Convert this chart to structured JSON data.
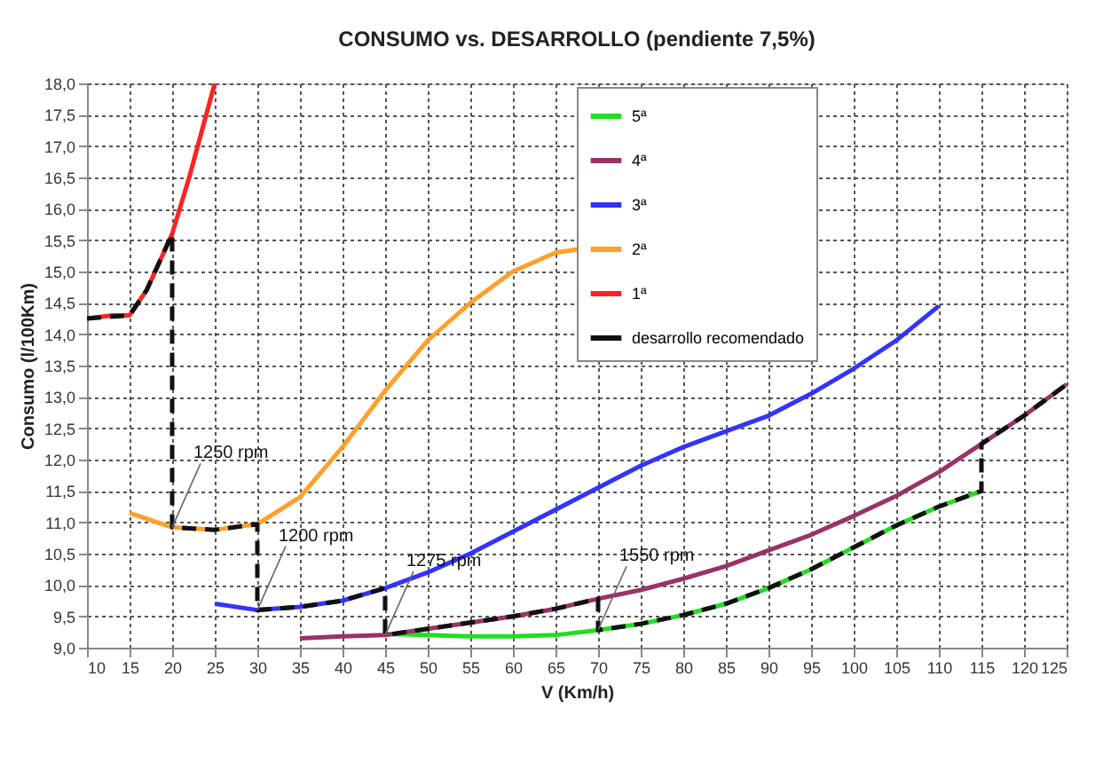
{
  "chart_data": {
    "type": "line",
    "title": "CONSUMO vs. DESARROLLO (pendiente 7,5%)",
    "xlabel": "V (Km/h)",
    "ylabel": "Consumo (l/100Km)",
    "xlim": [
      10,
      125
    ],
    "xticks": [
      10,
      15,
      20,
      25,
      30,
      35,
      40,
      45,
      50,
      55,
      60,
      65,
      70,
      75,
      80,
      85,
      90,
      95,
      100,
      105,
      110,
      115,
      120,
      125
    ],
    "ylim": [
      9.0,
      18.0
    ],
    "yticks": [
      {
        "value": 9.0,
        "label": "9,0"
      },
      {
        "value": 9.5,
        "label": "9,5"
      },
      {
        "value": 10.0,
        "label": "10,0"
      },
      {
        "value": 10.5,
        "label": "10,5"
      },
      {
        "value": 11.0,
        "label": "11,0"
      },
      {
        "value": 11.5,
        "label": "11,5"
      },
      {
        "value": 12.0,
        "label": "12,0"
      },
      {
        "value": 12.5,
        "label": "12,5"
      },
      {
        "value": 13.0,
        "label": "13,0"
      },
      {
        "value": 13.5,
        "label": "13,5"
      },
      {
        "value": 14.0,
        "label": "14,0"
      },
      {
        "value": 14.5,
        "label": "14,5"
      },
      {
        "value": 15.0,
        "label": "15,0"
      },
      {
        "value": 15.5,
        "label": "15,5"
      },
      {
        "value": 16.0,
        "label": "16,0"
      },
      {
        "value": 16.5,
        "label": "16,5"
      },
      {
        "value": 17.0,
        "label": "17,0"
      },
      {
        "value": 17.5,
        "label": "17,5"
      },
      {
        "value": 18.0,
        "label": "18,0"
      }
    ],
    "grid": true,
    "legend": "top",
    "marker": "none",
    "series": [
      {
        "name": "5ª",
        "color": "#22dd22",
        "x": [
          45,
          50,
          55,
          60,
          65,
          70,
          75,
          80,
          85,
          90,
          95,
          100,
          105,
          110,
          115
        ],
        "values": [
          9.22,
          9.2,
          9.18,
          9.18,
          9.2,
          9.28,
          9.38,
          9.52,
          9.7,
          9.95,
          10.25,
          10.6,
          10.95,
          11.25,
          11.5
        ]
      },
      {
        "name": "4ª",
        "color": "#993366",
        "x": [
          35,
          40,
          45,
          50,
          55,
          60,
          65,
          70,
          75,
          80,
          85,
          90,
          95,
          100,
          105,
          110,
          115,
          120,
          125
        ],
        "values": [
          9.15,
          9.18,
          9.2,
          9.3,
          9.4,
          9.5,
          9.62,
          9.78,
          9.92,
          10.1,
          10.3,
          10.55,
          10.8,
          11.1,
          11.42,
          11.8,
          12.25,
          12.7,
          13.2
        ]
      },
      {
        "name": "3ª",
        "color": "#3333ff",
        "x": [
          25,
          30,
          35,
          40,
          45,
          50,
          55,
          60,
          65,
          70,
          75,
          80,
          85,
          90,
          95,
          100,
          105,
          110
        ],
        "values": [
          9.7,
          9.6,
          9.65,
          9.75,
          9.95,
          10.2,
          10.5,
          10.85,
          11.2,
          11.55,
          11.9,
          12.2,
          12.45,
          12.7,
          13.05,
          13.45,
          13.9,
          14.45
        ]
      },
      {
        "name": "2ª",
        "color": "#ffa02a",
        "x": [
          15,
          20,
          25,
          30,
          35,
          40,
          45,
          50,
          55,
          60,
          65,
          70
        ],
        "values": [
          11.15,
          10.92,
          10.88,
          10.97,
          11.4,
          12.2,
          13.1,
          13.9,
          14.5,
          15.0,
          15.3,
          15.4
        ]
      },
      {
        "name": "1ª",
        "color": "#ff2222",
        "x": [
          10,
          13,
          15,
          17,
          20,
          22,
          25
        ],
        "values": [
          14.25,
          14.3,
          14.3,
          14.7,
          15.6,
          16.5,
          18.0
        ]
      },
      {
        "name": "desarrollo recomendado",
        "color": "#111111",
        "line_style": "dashed",
        "x": [
          10,
          15,
          17,
          20,
          20,
          25,
          30,
          30,
          35,
          40,
          45,
          45,
          50,
          55,
          60,
          65,
          70,
          70,
          75,
          80,
          85,
          90,
          95,
          100,
          105,
          110,
          115,
          115,
          120,
          125
        ],
        "values": [
          14.25,
          14.3,
          14.7,
          15.6,
          10.92,
          10.88,
          10.97,
          9.6,
          9.65,
          9.75,
          9.95,
          9.2,
          9.3,
          9.4,
          9.5,
          9.62,
          9.78,
          9.28,
          9.38,
          9.52,
          9.7,
          9.95,
          10.25,
          10.6,
          10.95,
          11.25,
          11.5,
          12.25,
          12.7,
          13.2
        ]
      }
    ],
    "annotations": [
      {
        "text": "1250 rpm",
        "x": 20,
        "y": 10.92
      },
      {
        "text": "1200 rpm",
        "x": 30,
        "y": 9.6
      },
      {
        "text": "1275 rpm",
        "x": 45,
        "y": 9.2
      },
      {
        "text": "1550 rpm",
        "x": 70,
        "y": 9.28
      }
    ]
  }
}
